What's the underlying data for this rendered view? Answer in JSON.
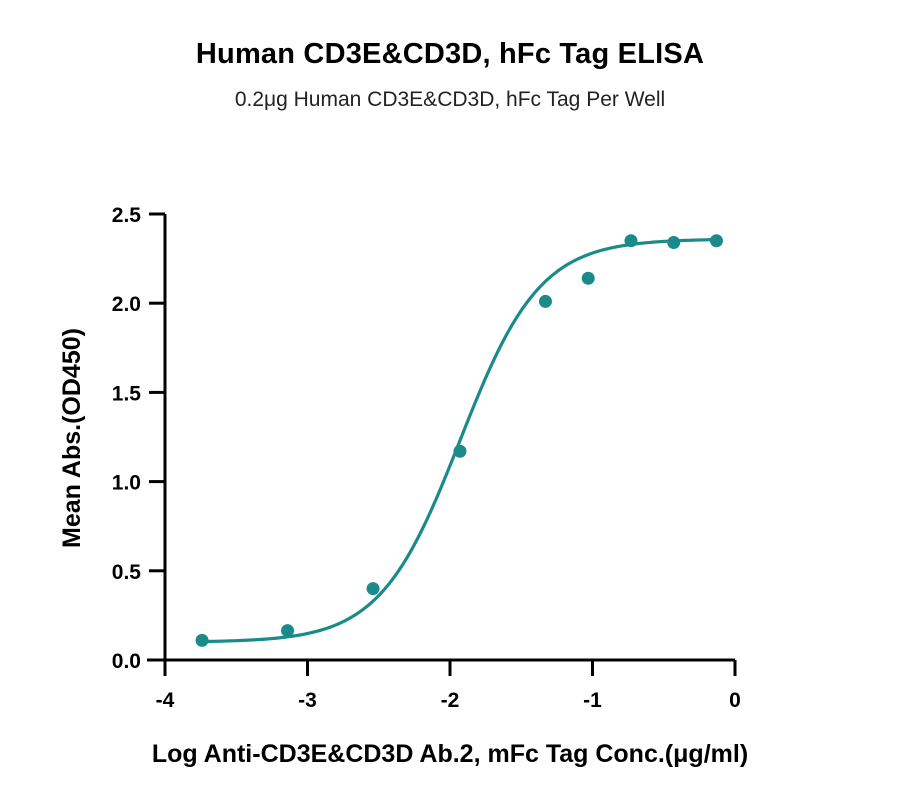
{
  "chart_data": {
    "type": "scatter",
    "title": "Human CD3E&CD3D, hFc Tag ELISA",
    "subtitle": "0.2μg Human CD3E&CD3D, hFc Tag Per Well",
    "xlabel": "Log  Anti-CD3E&CD3D Ab.2, mFc Tag Conc.(μg/ml)",
    "ylabel": "Mean Abs.(OD450)",
    "xlim": [
      -4,
      0
    ],
    "ylim": [
      0,
      2.5
    ],
    "xticks": [
      -4,
      -3,
      -2,
      -1,
      0
    ],
    "xtick_labels": [
      "-4",
      "-3",
      "-2",
      "-1",
      "0"
    ],
    "yticks": [
      0,
      0.5,
      1.0,
      1.5,
      2.0,
      2.5
    ],
    "ytick_labels": [
      "0.0",
      "0.5",
      "1.0",
      "1.5",
      "2.0",
      "2.5"
    ],
    "grid": false,
    "legend": "none",
    "series": [
      {
        "x": [
          -3.74,
          -3.14,
          -2.54,
          -1.93,
          -1.33,
          -1.03,
          -0.73,
          -0.43,
          -0.13
        ],
        "y": [
          0.11,
          0.165,
          0.4,
          1.17,
          2.01,
          2.14,
          2.35,
          2.34,
          2.35
        ],
        "color": "#1a8a8a",
        "fit": "4PL",
        "fit_params": {
          "bottom": 0.1,
          "top": 2.36,
          "logEC50": -1.93,
          "hill": 1.55
        }
      }
    ]
  }
}
